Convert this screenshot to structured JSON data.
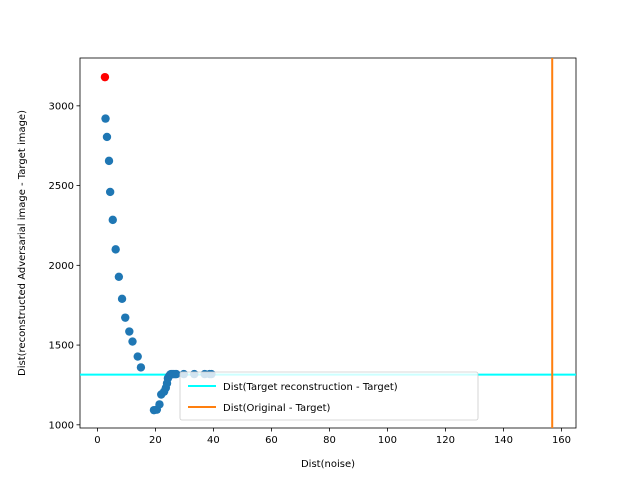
{
  "chart_data": {
    "type": "scatter",
    "title": "",
    "xlabel": "Dist(noise)",
    "ylabel": "Dist(reconstructed Adversarial image - Target image)",
    "xlim": [
      -6,
      165
    ],
    "ylim": [
      980,
      3300
    ],
    "xticks": [
      0,
      20,
      40,
      60,
      80,
      100,
      120,
      140,
      160
    ],
    "yticks": [
      1000,
      1500,
      2000,
      2500,
      3000
    ],
    "grid": false,
    "legend_placement": "bottom-center",
    "series": [
      {
        "color": "#1f77b4",
        "x": [
          2.8,
          3.3,
          4.0,
          4.4,
          5.3,
          6.3,
          7.4,
          8.5,
          9.6,
          11.0,
          12.1,
          13.9,
          15.0,
          19.5,
          20.5,
          21.4,
          22.0,
          23.0,
          23.6,
          24.0,
          24.3,
          24.7,
          25.1,
          25.4,
          25.8,
          26.3,
          26.8,
          27.2,
          29.8,
          33.4,
          37.0,
          38.7,
          39.3
        ],
        "y": [
          2920,
          2805,
          2655,
          2460,
          2285,
          2100,
          1928,
          1790,
          1672,
          1585,
          1522,
          1428,
          1360,
          1092,
          1095,
          1128,
          1190,
          1208,
          1232,
          1260,
          1292,
          1305,
          1315,
          1318,
          1318,
          1318,
          1318,
          1318,
          1318,
          1318,
          1318,
          1318,
          1318
        ]
      },
      {
        "color": "#ff0000",
        "x": [
          2.6
        ],
        "y": [
          3180
        ]
      }
    ],
    "reference_lines": [
      {
        "name": "Dist(Target reconstruction - Target)",
        "orientation": "horizontal",
        "value": 1315,
        "color": "#00ffff"
      },
      {
        "name": "Dist(Original - Target)",
        "orientation": "vertical",
        "value": 156.8,
        "color": "#ff7f0e"
      }
    ]
  }
}
